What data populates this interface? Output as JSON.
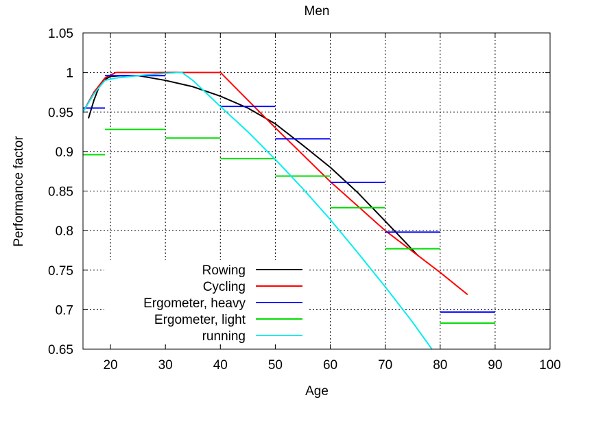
{
  "chart_data": {
    "type": "line",
    "title": "Men",
    "xlabel": "Age",
    "ylabel": "Performance factor",
    "xlim": [
      15,
      100
    ],
    "ylim": [
      0.65,
      1.05
    ],
    "x_ticks": [
      20,
      30,
      40,
      50,
      60,
      70,
      80,
      90,
      100
    ],
    "y_ticks": [
      "0.65",
      "0.7",
      "0.75",
      "0.8",
      "0.85",
      "0.9",
      "0.95",
      "1",
      "1.05"
    ],
    "grid": true,
    "legend_position": "bottom-left",
    "series": [
      {
        "name": "Rowing",
        "color": "#000000",
        "style": "line",
        "points": [
          [
            16,
            0.942
          ],
          [
            17,
            0.965
          ],
          [
            18,
            0.983
          ],
          [
            19,
            0.991
          ],
          [
            20,
            0.995
          ],
          [
            22,
            0.996
          ],
          [
            25,
            0.996
          ],
          [
            30,
            0.99
          ],
          [
            35,
            0.982
          ],
          [
            40,
            0.97
          ],
          [
            45,
            0.955
          ],
          [
            50,
            0.935
          ],
          [
            55,
            0.908
          ],
          [
            60,
            0.88
          ],
          [
            65,
            0.848
          ],
          [
            70,
            0.812
          ],
          [
            73,
            0.79
          ],
          [
            76,
            0.768
          ]
        ]
      },
      {
        "name": "Cycling",
        "color": "#ff0000",
        "style": "line",
        "points": [
          [
            15,
            0.95
          ],
          [
            17,
            0.975
          ],
          [
            19,
            0.993
          ],
          [
            21,
            1.0
          ],
          [
            40,
            1.0
          ],
          [
            50,
            0.93
          ],
          [
            60,
            0.862
          ],
          [
            70,
            0.8
          ],
          [
            80,
            0.747
          ],
          [
            85,
            0.719
          ]
        ]
      },
      {
        "name": "Ergometer, heavy",
        "color": "#0000ff",
        "style": "step",
        "segments": [
          [
            15,
            19,
            0.955
          ],
          [
            19,
            30,
            0.996
          ],
          [
            40,
            50,
            0.957
          ],
          [
            50,
            60,
            0.916
          ],
          [
            60,
            70,
            0.861
          ],
          [
            70,
            80,
            0.798
          ],
          [
            80,
            90,
            0.697
          ]
        ]
      },
      {
        "name": "Ergometer, light",
        "color": "#00dd00",
        "style": "step",
        "segments": [
          [
            15,
            19,
            0.896
          ],
          [
            19,
            30,
            0.928
          ],
          [
            30,
            40,
            0.917
          ],
          [
            40,
            50,
            0.891
          ],
          [
            50,
            60,
            0.869
          ],
          [
            60,
            70,
            0.829
          ],
          [
            70,
            80,
            0.777
          ],
          [
            80,
            90,
            0.683
          ]
        ]
      },
      {
        "name": "running",
        "color": "#00eeee",
        "style": "line",
        "points": [
          [
            15,
            0.95
          ],
          [
            17,
            0.973
          ],
          [
            19,
            0.99
          ],
          [
            21,
            0.993
          ],
          [
            25,
            0.996
          ],
          [
            30,
            0.999
          ],
          [
            33,
            1.0
          ],
          [
            35,
            0.99
          ],
          [
            40,
            0.957
          ],
          [
            45,
            0.925
          ],
          [
            50,
            0.89
          ],
          [
            55,
            0.853
          ],
          [
            60,
            0.814
          ],
          [
            65,
            0.772
          ],
          [
            70,
            0.729
          ],
          [
            75,
            0.684
          ],
          [
            78.5,
            0.65
          ]
        ]
      }
    ]
  }
}
